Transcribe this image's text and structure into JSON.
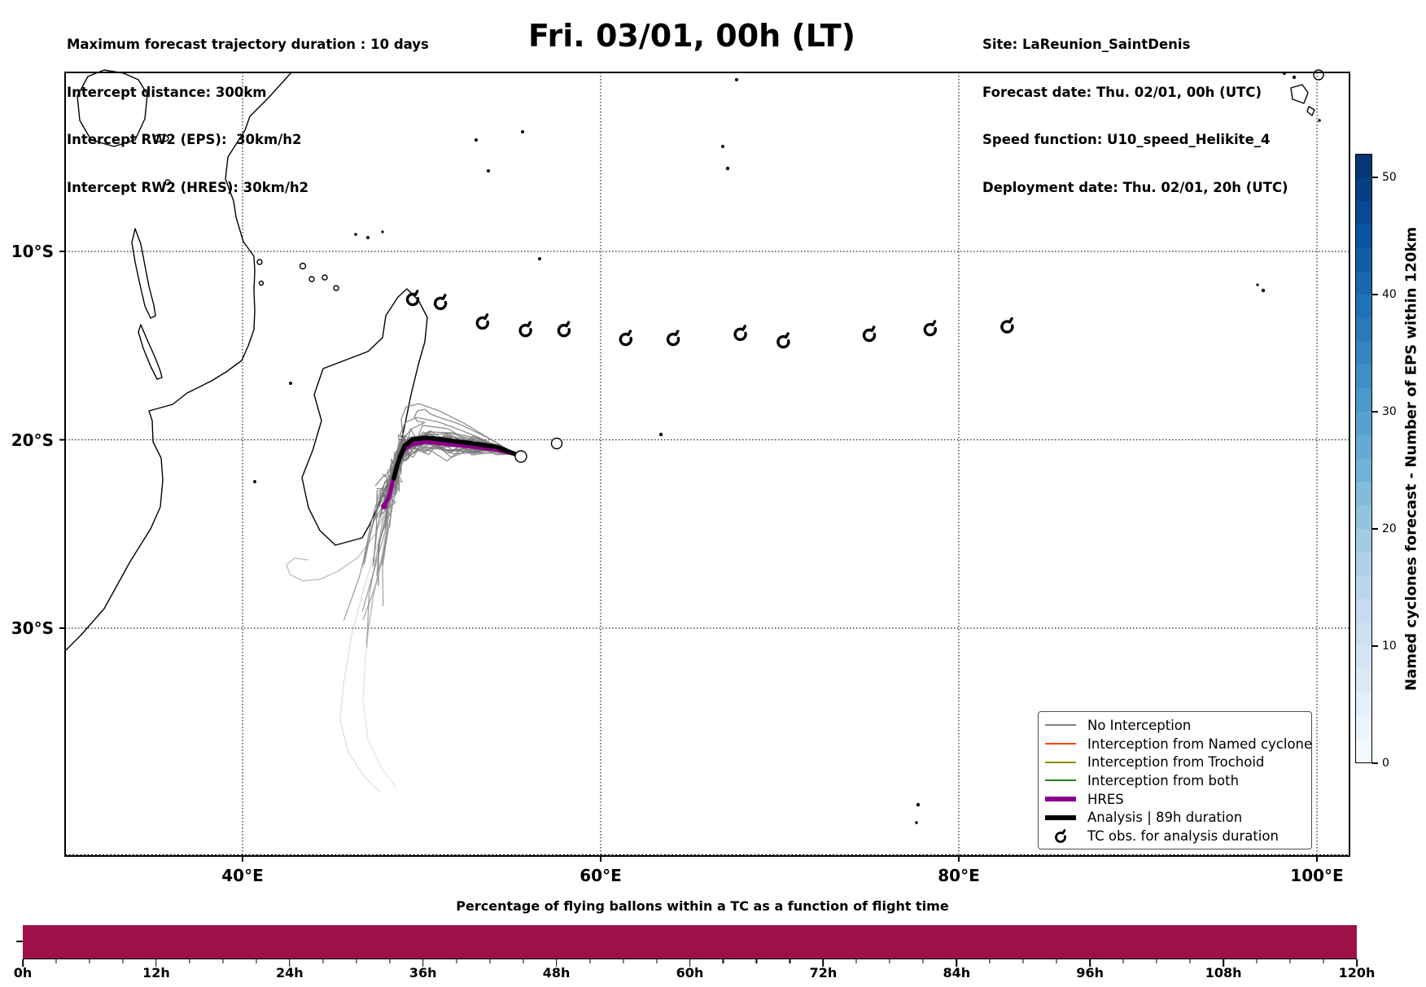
{
  "header": {
    "left_lines": [
      "Maximum forecast trajectory duration : 10 days",
      "Intercept distance: 300km",
      "Intercept RW2 (EPS):  30km/h2",
      "Intercept RW2 (HRES): 30km/h2"
    ],
    "title": "Fri. 03/01, 00h (LT)",
    "right_lines": [
      "Site: LaReunion_SaintDenis",
      "Forecast date: Thu. 02/01, 00h (UTC)",
      "Speed function: U10_speed_Helikite_4",
      "Deployment date: Thu. 02/01, 20h (UTC)"
    ]
  },
  "legend": {
    "items": [
      {
        "label": "No Interception",
        "type": "line",
        "color": "#808080",
        "lw": 2
      },
      {
        "label": "Interception from Named cyclone",
        "type": "line",
        "color": "#ff4500",
        "lw": 2
      },
      {
        "label": "Interception from Trochoid",
        "type": "line",
        "color": "#8f8f00",
        "lw": 2
      },
      {
        "label": "Interception from both",
        "type": "line",
        "color": "#1e7d1e",
        "lw": 2
      },
      {
        "label": "HRES",
        "type": "line",
        "color": "#8b008b",
        "lw": 6
      },
      {
        "label": "Analysis | 89h duration",
        "type": "line",
        "color": "#000000",
        "lw": 6
      },
      {
        "label": "TC obs. for analysis duration",
        "type": "symbol",
        "color": "#000000",
        "lw": 3
      }
    ]
  },
  "chart_data": {
    "type": "map+bar",
    "map": {
      "projection": "lonlat-degrees",
      "lon_ticks": [
        {
          "label": "40°E",
          "lon": 40
        },
        {
          "label": "60°E",
          "lon": 60
        },
        {
          "label": "80°E",
          "lon": 80
        },
        {
          "label": "100°E",
          "lon": 100
        }
      ],
      "lat_ticks": [
        {
          "label": "10°S",
          "lat": 10
        },
        {
          "label": "20°S",
          "lat": 20
        },
        {
          "label": "30°S",
          "lat": 30
        }
      ],
      "lon_range": [
        30.1,
        101.8
      ],
      "lat_range_south": [
        0.5,
        42.1
      ],
      "grid": true,
      "tc_obs_lonlat": [
        [
          49.5,
          12.55
        ],
        [
          51.05,
          12.76
        ],
        [
          53.4,
          13.8
        ],
        [
          55.8,
          14.2
        ],
        [
          57.95,
          14.2
        ],
        [
          61.4,
          14.67
        ],
        [
          64.05,
          14.67
        ],
        [
          67.8,
          14.4
        ],
        [
          70.2,
          14.8
        ],
        [
          75.0,
          14.45
        ],
        [
          78.4,
          14.15
        ],
        [
          82.7,
          14.0
        ]
      ],
      "analysis_track_lonlat": [
        [
          55.23,
          20.76
        ],
        [
          54.18,
          20.37
        ],
        [
          52.82,
          20.19
        ],
        [
          51.45,
          20.02
        ],
        [
          50.32,
          19.89
        ],
        [
          49.5,
          19.98
        ],
        [
          49.05,
          20.32
        ],
        [
          48.82,
          20.84
        ],
        [
          48.59,
          21.49
        ],
        [
          48.45,
          22.05
        ]
      ],
      "hres_track_lonlat": [
        [
          55.23,
          20.76
        ],
        [
          54.27,
          20.54
        ],
        [
          52.91,
          20.37
        ],
        [
          51.55,
          20.24
        ],
        [
          50.27,
          20.11
        ],
        [
          49.45,
          20.24
        ],
        [
          49.0,
          20.54
        ],
        [
          48.73,
          21.1
        ],
        [
          48.5,
          21.79
        ],
        [
          48.32,
          22.48
        ],
        [
          48.18,
          23.0
        ],
        [
          47.91,
          23.52
        ]
      ],
      "ensemble": {
        "count": 30,
        "color": "#7a7a7a",
        "status": "No Interception"
      },
      "south_tracks_lonlat": [
        [
          [
            48.32,
            22.48
          ],
          [
            47.64,
            25.16
          ],
          [
            46.82,
            27.75
          ],
          [
            46.09,
            30.35
          ],
          [
            45.64,
            32.94
          ],
          [
            45.45,
            34.88
          ],
          [
            45.91,
            36.61
          ],
          [
            46.82,
            37.91
          ],
          [
            47.68,
            38.69
          ]
        ],
        [
          [
            48.45,
            22.57
          ],
          [
            47.91,
            25.59
          ],
          [
            47.27,
            28.62
          ],
          [
            46.86,
            31.43
          ],
          [
            46.73,
            33.89
          ],
          [
            47.0,
            35.87
          ],
          [
            47.73,
            37.39
          ],
          [
            48.59,
            38.47
          ]
        ],
        [
          [
            48.18,
            23.22
          ],
          [
            47.45,
            24.95
          ],
          [
            46.45,
            26.24
          ],
          [
            45.32,
            26.98
          ],
          [
            44.32,
            27.41
          ],
          [
            43.36,
            27.49
          ],
          [
            42.64,
            27.15
          ],
          [
            42.45,
            26.63
          ],
          [
            42.91,
            26.29
          ],
          [
            43.64,
            26.37
          ]
        ],
        [
          [
            48.27,
            23.43
          ],
          [
            47.82,
            26.03
          ],
          [
            47.27,
            28.4
          ],
          [
            46.91,
            30.78
          ]
        ]
      ],
      "upper_tracks_lonlat": [
        [
          [
            55.23,
            20.76
          ],
          [
            53.95,
            20.19
          ],
          [
            52.36,
            19.55
          ],
          [
            51.0,
            19.07
          ],
          [
            49.73,
            18.81
          ],
          [
            49.09,
            19.07
          ],
          [
            48.82,
            19.68
          ],
          [
            48.95,
            20.11
          ]
        ],
        [
          [
            55.23,
            20.76
          ],
          [
            53.73,
            19.9
          ],
          [
            52.09,
            19.16
          ],
          [
            50.86,
            18.77
          ],
          [
            50.45,
            18.6
          ],
          [
            50.18,
            18.38
          ],
          [
            49.77,
            18.47
          ],
          [
            49.59,
            18.77
          ],
          [
            49.77,
            19.03
          ],
          [
            50.18,
            19.07
          ],
          [
            49.45,
            19.42
          ],
          [
            49.0,
            19.9
          ],
          [
            48.91,
            20.5
          ]
        ],
        [
          [
            55.23,
            20.76
          ],
          [
            53.95,
            20.03
          ],
          [
            52.36,
            19.12
          ],
          [
            51.0,
            18.47
          ],
          [
            49.86,
            18.08
          ],
          [
            49.14,
            18.25
          ],
          [
            48.86,
            18.9
          ],
          [
            48.95,
            19.76
          ],
          [
            49.18,
            20.41
          ]
        ]
      ],
      "launch_site": {
        "name": "LaReunion_SaintDenis",
        "lon": 55.45,
        "lat": 20.9
      }
    },
    "colorbar": {
      "label": "Named cyclones forecast - Number of EPS within 120km",
      "ticks": [
        0,
        10,
        20,
        30,
        40,
        50
      ],
      "vmin": 0,
      "vmax": 52,
      "colormap": "Blues",
      "segments": 26
    },
    "flight_bar": {
      "type": "bar",
      "title": "Percentage of flying ballons within a TC as a function of flight time",
      "x_tick_labels": [
        "0h",
        "12h",
        "24h",
        "36h",
        "48h",
        "60h",
        "72h",
        "84h",
        "96h",
        "108h",
        "120h"
      ],
      "x_major_step_h": 12,
      "x_minor_step_h": 3,
      "x_range_h": [
        0,
        120
      ],
      "bar_color": "#9e1048",
      "series": [
        {
          "name": "pct_flying_balloons_in_tc",
          "value_pct": 100,
          "from_h": 0,
          "to_h": 120
        }
      ]
    }
  }
}
